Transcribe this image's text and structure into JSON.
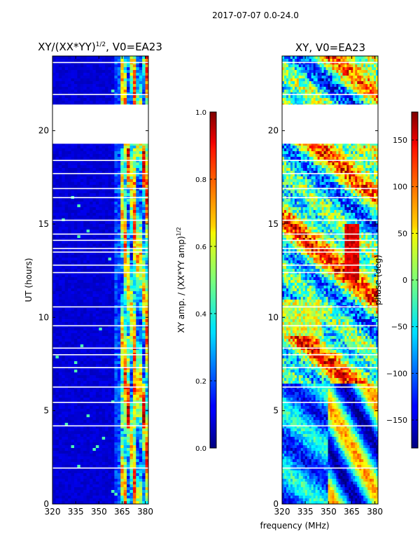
{
  "suptitle": "2017-07-07 0.0-24.0",
  "xlabel_shared": "frequency (MHz)",
  "chart_data": [
    {
      "type": "heatmap",
      "title_main": "XY/(XX*YY)",
      "title_sup": "1/2",
      "title_rest": ", V0=EA23",
      "ylabel": "UT (hours)",
      "xlim": [
        320,
        382
      ],
      "ylim": [
        0,
        24
      ],
      "xticks": [
        "320",
        "335",
        "350",
        "365",
        "380"
      ],
      "xtick_values": [
        320,
        335,
        350,
        365,
        380
      ],
      "yticks": [
        "0",
        "5",
        "10",
        "15",
        "20"
      ],
      "ytick_values": [
        0,
        5,
        10,
        15,
        20
      ],
      "colorbar": {
        "label_main": "XY amp. / (XX*YY amp)",
        "label_sup": "1/2",
        "range": [
          0.0,
          1.0
        ],
        "ticks": [
          "0.0",
          "0.2",
          "0.4",
          "0.6",
          "0.8",
          "1.0"
        ],
        "tick_values": [
          0.0,
          0.2,
          0.4,
          0.6,
          0.8,
          1.0
        ]
      },
      "data_gap_hours": [
        19.3,
        21.4
      ]
    },
    {
      "type": "heatmap",
      "title": "XY, V0=EA23",
      "xlim": [
        320,
        382
      ],
      "ylim": [
        0,
        24
      ],
      "xticks": [
        "320",
        "335",
        "350",
        "365",
        "380"
      ],
      "xtick_values": [
        320,
        335,
        350,
        365,
        380
      ],
      "yticks": [
        "0",
        "5",
        "10",
        "15",
        "20"
      ],
      "ytick_values": [
        0,
        5,
        10,
        15,
        20
      ],
      "colorbar": {
        "label": "phase (deg)",
        "range": [
          -180,
          180
        ],
        "ticks": [
          "−150",
          "−100",
          "−50",
          "0",
          "50",
          "100",
          "150"
        ],
        "tick_values": [
          -150,
          -100,
          -50,
          0,
          50,
          100,
          150
        ]
      },
      "data_gap_hours": [
        19.3,
        21.4
      ]
    }
  ],
  "colors": {
    "frame": "#000000",
    "background": "#ffffff",
    "gap_lines": "#ffffff"
  }
}
